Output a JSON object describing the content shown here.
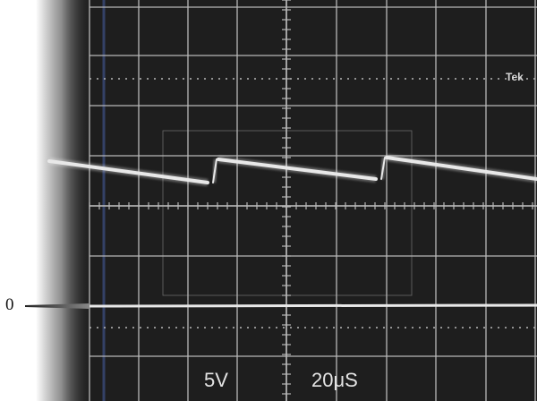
{
  "scope": {
    "brand": "Tek",
    "volts_per_div": "5V",
    "time_per_div": "20μS",
    "zero_marker": "0",
    "colors": {
      "screen": "#1e1e1e",
      "grid": "#b8b8b8",
      "trace": "#e8e8e8",
      "paper": "#ffffff"
    }
  }
}
